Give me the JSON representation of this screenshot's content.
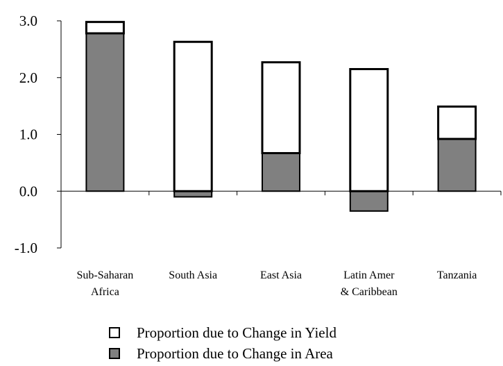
{
  "chart_data": {
    "type": "bar",
    "stacked": true,
    "categories": [
      [
        "Sub-Saharan",
        "Africa"
      ],
      [
        "South Asia"
      ],
      [
        "East Asia"
      ],
      [
        "Latin Amer",
        "& Caribbean"
      ],
      [
        "Tanzania"
      ]
    ],
    "series": [
      {
        "name": "Proportion due to Change in Area",
        "color": "#808080",
        "values": [
          2.78,
          -0.1,
          0.67,
          -0.35,
          0.92
        ]
      },
      {
        "name": "Proportion due to Change in Yield",
        "color": "#ffffff",
        "values": [
          0.2,
          2.63,
          1.6,
          2.15,
          0.57
        ]
      }
    ],
    "ylim": [
      -1.0,
      3.0
    ],
    "yticks": [
      "3.0",
      "2.0",
      "1.0",
      "0.0",
      "-1.0"
    ],
    "title": "",
    "xlabel": "",
    "ylabel": "",
    "grid": false,
    "legend_position": "bottom"
  }
}
